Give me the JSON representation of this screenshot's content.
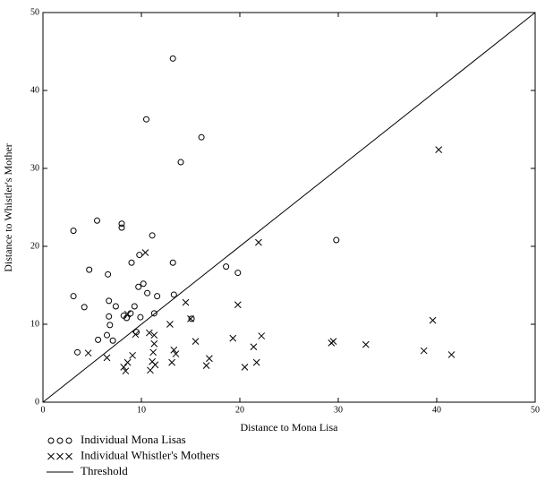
{
  "chart_data": {
    "type": "scatter",
    "x_label": "Distance to Mona Lisa",
    "y_label": "Distance to Whistler's Mother",
    "xlim": [
      0,
      50
    ],
    "ylim": [
      0,
      50
    ],
    "xticks": [
      0,
      10,
      20,
      30,
      40,
      50
    ],
    "yticks": [
      0,
      10,
      20,
      30,
      40,
      50
    ],
    "legend": "bottom-left",
    "series": [
      {
        "name": "Individual Mona Lisas",
        "marker": "circle",
        "color": "#000000",
        "x": [
          3.1,
          3.1,
          3.5,
          4.2,
          4.7,
          5.5,
          5.6,
          6.5,
          6.6,
          6.7,
          6.7,
          6.8,
          7.1,
          7.4,
          8.0,
          8.0,
          8.2,
          8.5,
          8.9,
          9.0,
          9.3,
          9.5,
          9.7,
          9.8,
          9.9,
          10.2,
          10.5,
          10.6,
          11.1,
          11.3,
          11.6,
          13.2,
          13.2,
          13.3,
          14.0,
          15.1,
          16.1,
          18.6,
          19.8,
          29.8
        ],
        "values": [
          22.0,
          13.6,
          6.4,
          12.2,
          17.0,
          23.3,
          8.0,
          8.6,
          16.4,
          13.0,
          11.0,
          9.9,
          7.9,
          12.3,
          22.9,
          22.4,
          11.1,
          10.8,
          11.4,
          17.9,
          12.3,
          9.0,
          14.8,
          18.9,
          10.9,
          15.2,
          36.3,
          14.0,
          21.4,
          11.4,
          13.6,
          44.1,
          17.9,
          13.8,
          30.8,
          10.7,
          34.0,
          17.4,
          16.6,
          20.8
        ]
      },
      {
        "name": "Individual Whistler's Mothers",
        "marker": "x",
        "color": "#000000",
        "x": [
          4.6,
          6.5,
          8.2,
          8.4,
          8.6,
          9.1,
          9.4,
          8.6,
          10.4,
          10.8,
          10.9,
          11.1,
          11.2,
          11.3,
          11.3,
          11.4,
          12.9,
          13.1,
          13.3,
          13.5,
          14.5,
          15.0,
          15.5,
          16.6,
          16.9,
          19.3,
          19.8,
          20.5,
          21.4,
          21.7,
          21.9,
          22.2,
          29.3,
          29.5,
          32.8,
          38.7,
          39.6,
          40.2,
          41.5
        ],
        "values": [
          6.3,
          5.7,
          4.5,
          4.0,
          5.1,
          6.0,
          8.7,
          11.3,
          19.2,
          8.9,
          4.1,
          5.2,
          6.4,
          7.5,
          8.6,
          4.8,
          10.0,
          5.1,
          6.7,
          6.2,
          12.8,
          10.7,
          7.8,
          4.7,
          5.6,
          8.2,
          12.5,
          4.5,
          7.1,
          5.1,
          20.5,
          8.5,
          7.6,
          7.8,
          7.4,
          6.6,
          10.5,
          32.4,
          6.1
        ]
      },
      {
        "name": "Threshold",
        "marker": "line",
        "color": "#000000",
        "x": [
          0,
          50
        ],
        "values": [
          0,
          50
        ]
      }
    ]
  }
}
